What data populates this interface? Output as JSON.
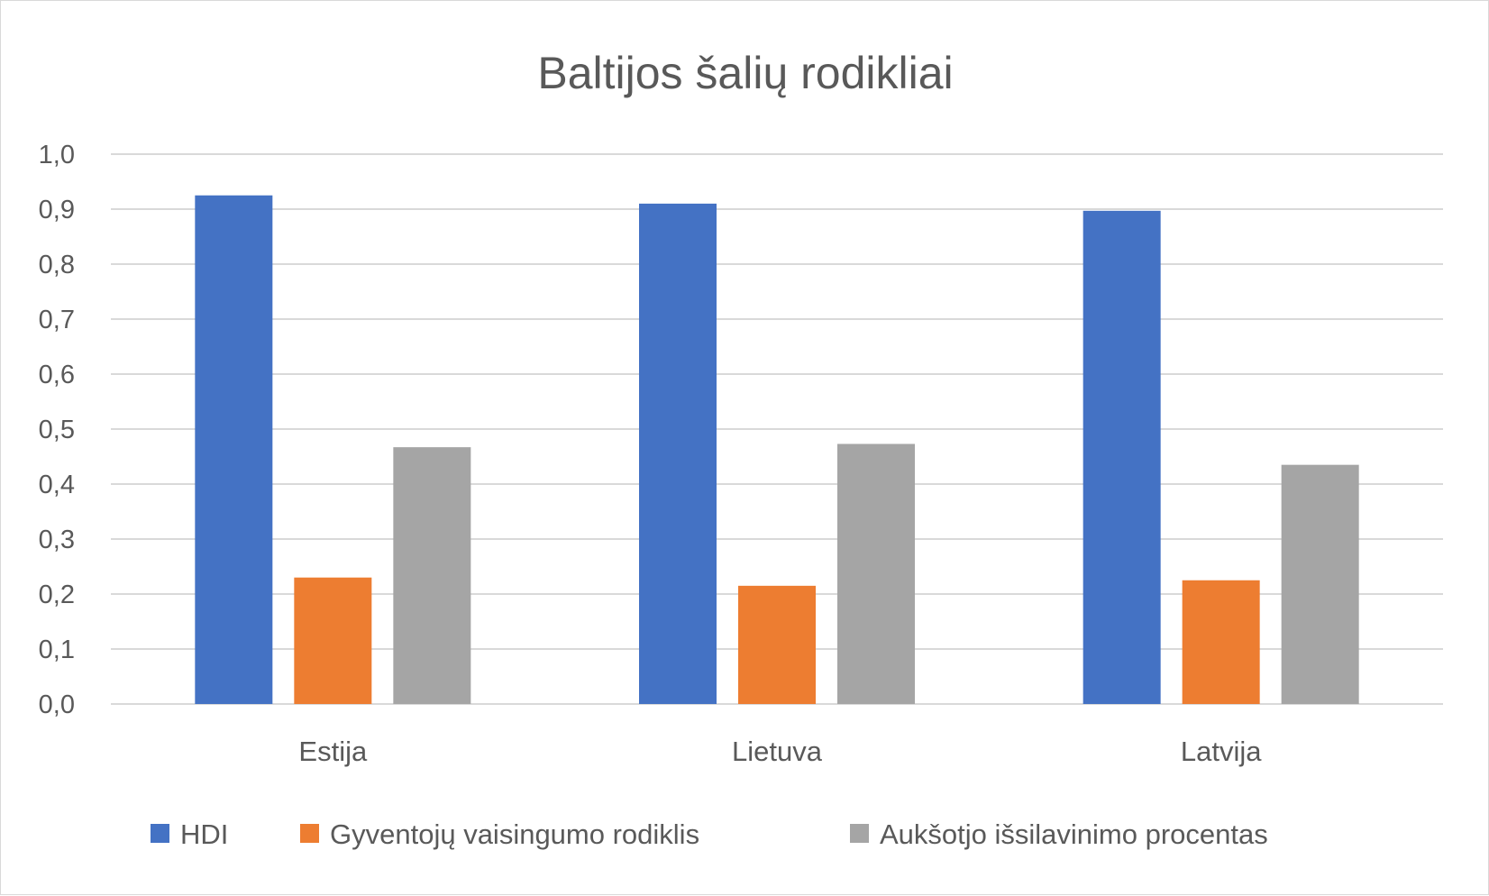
{
  "chart_data": {
    "type": "bar",
    "title": "Baltijos šalių rodikliai",
    "xlabel": "",
    "ylabel": "",
    "categories": [
      "Estija",
      "Lietuva",
      "Latvija"
    ],
    "series": [
      {
        "name": "HDI",
        "values": [
          0.925,
          0.91,
          0.897
        ],
        "color": "#4472c4"
      },
      {
        "name": "Gyventojų vaisingumo rodiklis",
        "values": [
          0.23,
          0.215,
          0.225
        ],
        "color": "#ed7d31"
      },
      {
        "name": "Aukšotjo išsilavinimo procentas",
        "values": [
          0.467,
          0.473,
          0.435
        ],
        "color": "#a5a5a5"
      }
    ],
    "ylim": [
      0,
      1.0
    ],
    "yticks": [
      "0,0",
      "0,1",
      "0,2",
      "0,3",
      "0,4",
      "0,5",
      "0,6",
      "0,7",
      "0,8",
      "0,9",
      "1,0"
    ],
    "grid": true,
    "legend_position": "bottom"
  }
}
